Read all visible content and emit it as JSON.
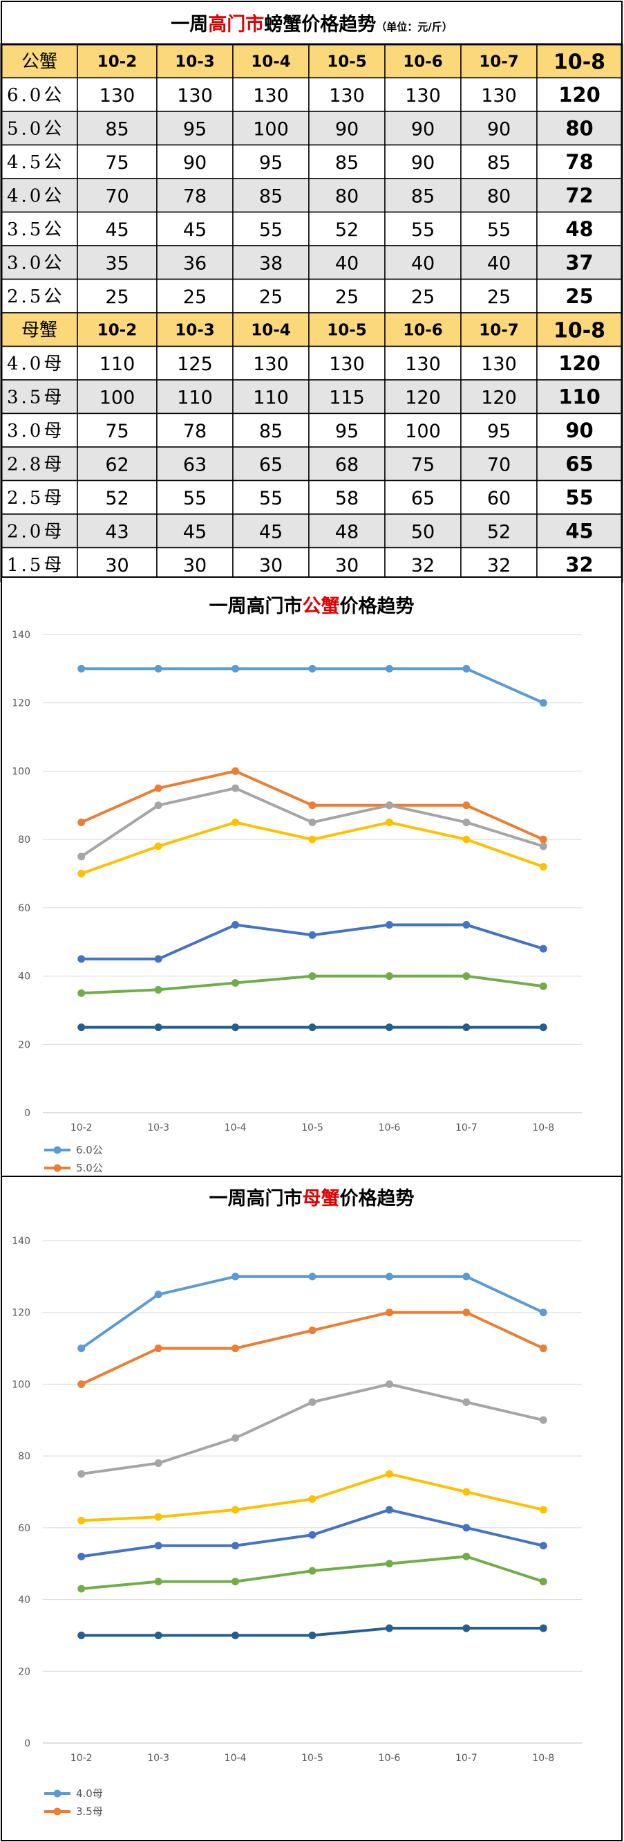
{
  "colors": {
    "header_bg": "#FBD87A",
    "row_alt_bg": "#E4E4E4",
    "title_red": "#E00000",
    "border": "#000000",
    "grid": "#D9D9D9"
  },
  "table": {
    "title_prefix": "一周",
    "title_red": "高门市",
    "title_suffix": "螃蟹价格趋势",
    "unit_note": "（单位：元/斤）",
    "dates": [
      "10-2",
      "10-3",
      "10-4",
      "10-5",
      "10-6",
      "10-7",
      "10-8"
    ],
    "male": {
      "header": "公蟹",
      "rows": [
        {
          "label": "6.0公",
          "values": [
            130,
            130,
            130,
            130,
            130,
            130,
            120
          ]
        },
        {
          "label": "5.0公",
          "values": [
            85,
            95,
            100,
            90,
            90,
            90,
            80
          ]
        },
        {
          "label": "4.5公",
          "values": [
            75,
            90,
            95,
            85,
            90,
            85,
            78
          ]
        },
        {
          "label": "4.0公",
          "values": [
            70,
            78,
            85,
            80,
            85,
            80,
            72
          ]
        },
        {
          "label": "3.5公",
          "values": [
            45,
            45,
            55,
            52,
            55,
            55,
            48
          ]
        },
        {
          "label": "3.0公",
          "values": [
            35,
            36,
            38,
            40,
            40,
            40,
            37
          ]
        },
        {
          "label": "2.5公",
          "values": [
            25,
            25,
            25,
            25,
            25,
            25,
            25
          ]
        }
      ]
    },
    "female": {
      "header": "母蟹",
      "rows": [
        {
          "label": "4.0母",
          "values": [
            110,
            125,
            130,
            130,
            130,
            130,
            120
          ]
        },
        {
          "label": "3.5母",
          "values": [
            100,
            110,
            110,
            115,
            120,
            120,
            110
          ]
        },
        {
          "label": "3.0母",
          "values": [
            75,
            78,
            85,
            95,
            100,
            95,
            90
          ]
        },
        {
          "label": "2.8母",
          "values": [
            62,
            63,
            65,
            68,
            75,
            70,
            65
          ]
        },
        {
          "label": "2.5母",
          "values": [
            52,
            55,
            55,
            58,
            65,
            60,
            55
          ]
        },
        {
          "label": "2.0母",
          "values": [
            43,
            45,
            45,
            48,
            50,
            52,
            45
          ]
        },
        {
          "label": "1.5母",
          "values": [
            30,
            30,
            30,
            30,
            32,
            32,
            32
          ]
        }
      ]
    }
  },
  "chart_data": [
    {
      "type": "line",
      "title_prefix": "一周高门市",
      "title_red": "公蟹",
      "title_suffix": "价格趋势",
      "categories": [
        "10-2",
        "10-3",
        "10-4",
        "10-5",
        "10-6",
        "10-7",
        "10-8"
      ],
      "ylim": [
        0,
        140
      ],
      "yticks": [
        0,
        20,
        40,
        60,
        80,
        100,
        120,
        140
      ],
      "grid": true,
      "legend_position": "bottom-left",
      "legend_visible": [
        "6.0公",
        "5.0公"
      ],
      "series": [
        {
          "name": "6.0公",
          "color": "#5B9BD5",
          "values": [
            130,
            130,
            130,
            130,
            130,
            130,
            120
          ]
        },
        {
          "name": "5.0公",
          "color": "#ED7D31",
          "values": [
            85,
            95,
            100,
            90,
            90,
            90,
            80
          ]
        },
        {
          "color": "#A5A5A5",
          "values": [
            75,
            90,
            95,
            85,
            90,
            85,
            78
          ]
        },
        {
          "color": "#FFC000",
          "values": [
            70,
            78,
            85,
            80,
            85,
            80,
            72
          ]
        },
        {
          "color": "#4472C4",
          "values": [
            45,
            45,
            55,
            52,
            55,
            55,
            48
          ]
        },
        {
          "color": "#70AD47",
          "values": [
            35,
            36,
            38,
            40,
            40,
            40,
            37
          ]
        },
        {
          "color": "#255E91",
          "values": [
            25,
            25,
            25,
            25,
            25,
            25,
            25
          ]
        }
      ]
    },
    {
      "type": "line",
      "title_prefix": "一周高门市",
      "title_red": "母蟹",
      "title_suffix": "价格趋势",
      "categories": [
        "10-2",
        "10-3",
        "10-4",
        "10-5",
        "10-6",
        "10-7",
        "10-8"
      ],
      "ylim": [
        0,
        140
      ],
      "yticks": [
        0,
        20,
        40,
        60,
        80,
        100,
        120,
        140
      ],
      "grid": true,
      "legend_position": "bottom-left",
      "legend_visible": [
        "4.0母",
        "3.5母"
      ],
      "series": [
        {
          "name": "4.0母",
          "color": "#5B9BD5",
          "values": [
            110,
            125,
            130,
            130,
            130,
            130,
            120
          ]
        },
        {
          "name": "3.5母",
          "color": "#ED7D31",
          "values": [
            100,
            110,
            110,
            115,
            120,
            120,
            110
          ]
        },
        {
          "color": "#A5A5A5",
          "values": [
            75,
            78,
            85,
            95,
            100,
            95,
            90
          ]
        },
        {
          "color": "#FFC000",
          "values": [
            62,
            63,
            65,
            68,
            75,
            70,
            65
          ]
        },
        {
          "color": "#4472C4",
          "values": [
            52,
            55,
            55,
            58,
            65,
            60,
            55
          ]
        },
        {
          "color": "#70AD47",
          "values": [
            43,
            45,
            45,
            48,
            50,
            52,
            45
          ]
        },
        {
          "color": "#255E91",
          "values": [
            30,
            30,
            30,
            30,
            32,
            32,
            32
          ]
        }
      ]
    }
  ]
}
